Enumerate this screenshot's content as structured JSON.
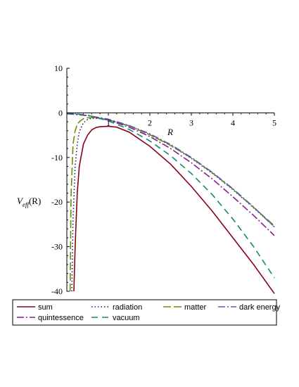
{
  "chart_data": {
    "type": "line",
    "xlabel": "R",
    "ylabel": {
      "prefix": "V",
      "sub": "eff",
      "suffix": "(R)"
    },
    "xlim": [
      0,
      5
    ],
    "ylim": [
      -40,
      10
    ],
    "x_ticks": [
      "1",
      "2",
      "3",
      "4",
      "5"
    ],
    "y_ticks": [
      "10",
      "0",
      "-10",
      "-20",
      "-30",
      "-40"
    ],
    "series": [
      {
        "name": "sum",
        "color": "#8b0019",
        "dash": "solid",
        "x": [
          0.17,
          0.2,
          0.25,
          0.3,
          0.4,
          0.5,
          0.6,
          0.7,
          0.8,
          1.0,
          1.2,
          1.5,
          2.0,
          2.5,
          3.0,
          3.5,
          4.0,
          4.5,
          5.0
        ],
        "y": [
          -40,
          -30,
          -18,
          -12,
          -7,
          -5,
          -3.8,
          -3.3,
          -3.1,
          -3,
          -3.2,
          -4.3,
          -7.5,
          -11.5,
          -16.5,
          -22,
          -28,
          -34,
          -40.5
        ]
      },
      {
        "name": "radiation",
        "color": "#1c1c7a",
        "dash": "dotted",
        "x": [
          0.12,
          0.15,
          0.2,
          0.25,
          0.3,
          0.4,
          0.5,
          0.6,
          0.8,
          1.0,
          1.5,
          2.0,
          2.5,
          3.0,
          3.5,
          4.0,
          4.5,
          5.0
        ],
        "y": [
          -40,
          -24,
          -12,
          -7,
          -4.2,
          -2.2,
          -1.5,
          -1.2,
          -1.3,
          -1.6,
          -2.9,
          -4.9,
          -7.3,
          -10.2,
          -13.5,
          -17.2,
          -21.3,
          -25.5
        ]
      },
      {
        "name": "matter",
        "color": "#6b8e00",
        "dash": "longdash",
        "x": [
          0.08,
          0.1,
          0.15,
          0.2,
          0.25,
          0.3,
          0.4,
          0.5,
          0.6,
          0.8,
          1.0,
          1.5,
          2.0,
          2.5,
          3.0,
          3.5,
          4.0,
          4.5,
          5.0
        ],
        "y": [
          -40,
          -19,
          -7,
          -4,
          -2.6,
          -2,
          -1.3,
          -1.1,
          -1.05,
          -1.2,
          -1.6,
          -2.9,
          -4.9,
          -7.3,
          -10.1,
          -13.4,
          -17.1,
          -21.2,
          -25.3
        ]
      },
      {
        "name": "dark energy",
        "color": "#5c5cb0",
        "dash": "dashdot",
        "x": [
          0.0,
          0.5,
          1.0,
          1.5,
          2.0,
          2.5,
          3.0,
          3.5,
          4.0,
          4.5,
          5.0
        ],
        "y": [
          -0.2,
          -0.6,
          -1.4,
          -2.8,
          -4.7,
          -7.1,
          -10.0,
          -13.3,
          -17.0,
          -21.1,
          -25.6
        ]
      },
      {
        "name": "quintessence",
        "color": "#8b1a8b",
        "dash": "dashdot",
        "x": [
          0.0,
          0.5,
          1.0,
          1.5,
          2.0,
          2.5,
          3.0,
          3.5,
          4.0,
          4.5,
          5.0
        ],
        "y": [
          -0.1,
          -0.6,
          -1.6,
          -3.2,
          -5.3,
          -8.0,
          -11.2,
          -14.8,
          -18.8,
          -23.0,
          -27.5
        ]
      },
      {
        "name": "vacuum",
        "color": "#108878",
        "dash": "dashed",
        "x": [
          0.0,
          0.5,
          1.0,
          1.5,
          2.0,
          2.5,
          3.0,
          3.5,
          4.0,
          4.5,
          5.0
        ],
        "y": [
          -0.05,
          -0.5,
          -1.8,
          -3.7,
          -6.3,
          -9.6,
          -13.6,
          -18.3,
          -23.8,
          -30.0,
          -37.0
        ]
      }
    ]
  }
}
